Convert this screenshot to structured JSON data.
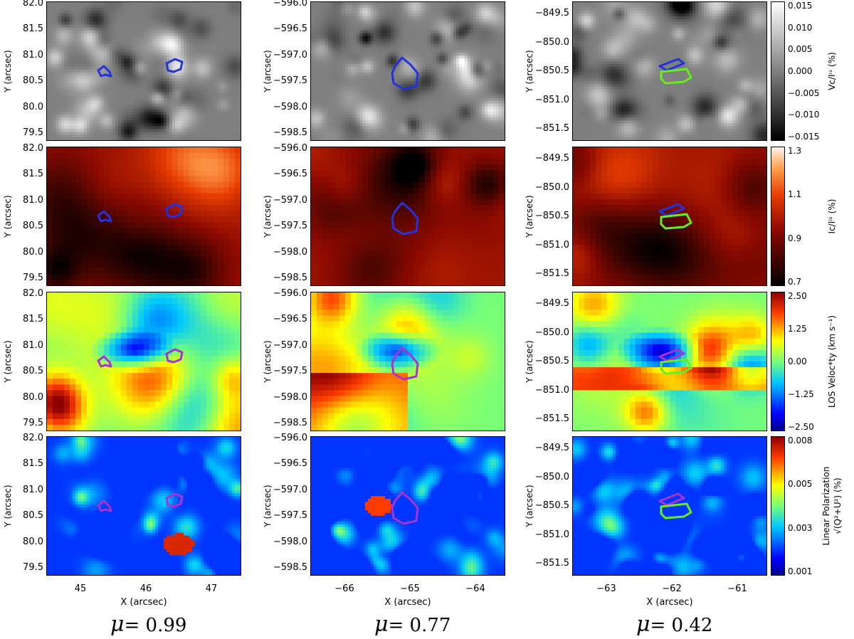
{
  "chart_data": {
    "type": "heatmap",
    "columns": [
      {
        "mu_label": "= 0.99",
        "xlabel": "X (arcsec)",
        "ylabel": "Y (arcsec)",
        "xticks": [
          "45",
          "46",
          "47"
        ],
        "yticks": [
          "82.0",
          "81.5",
          "81.0",
          "80.5",
          "80.0",
          "79.5"
        ]
      },
      {
        "mu_label": "= 0.77",
        "xlabel": "X (arcsec)",
        "ylabel": "Y (arcsec)",
        "xticks": [
          "−66",
          "−65",
          "−64"
        ],
        "yticks": [
          "−596.0",
          "−596.5",
          "−597.0",
          "−597.5",
          "−598.0",
          "−598.5"
        ]
      },
      {
        "mu_label": "= 0.42",
        "xlabel": "X (arcsec)",
        "ylabel": "Y (arcsec)",
        "xticks": [
          "−63",
          "−62",
          "−61"
        ],
        "yticks": [
          "−849.5",
          "−850.0",
          "−850.5",
          "−851.0",
          "−851.5"
        ]
      }
    ],
    "rows": [
      {
        "quantity": "Vc/Iqs",
        "colorbar_label": "Vᴄ/Iⁱˢ (%)",
        "colormap": "gray",
        "ticks": [
          "0.015",
          "0.010",
          "0.005",
          "0.000",
          "−0.005",
          "−0.010",
          "−0.015"
        ],
        "range": [
          -0.015,
          0.015
        ]
      },
      {
        "quantity": "Ic/Iqs",
        "colorbar_label": "Iᴄ/Iⁱˢ (%)",
        "colormap": "heat",
        "ticks": [
          "1.3",
          "1.1",
          "0.9",
          "0.7"
        ],
        "range": [
          0.7,
          1.3
        ]
      },
      {
        "quantity": "LOS Velocity",
        "colorbar_label": "LOS Veloc*ty (km s⁻¹)",
        "colormap": "jet",
        "ticks": [
          "2.50",
          "1.25",
          "0.00",
          "−1.25",
          "−2.50"
        ],
        "range": [
          -2.5,
          2.5
        ]
      },
      {
        "quantity": "Linear Polarization",
        "colorbar_label": "Linear Polarization",
        "colorbar_label2": "√(Q²+U²) (%)",
        "colormap": "jet",
        "ticks": [
          "0.008",
          "0.005",
          "0.003",
          "0.001"
        ],
        "range": [
          0.001,
          0.008
        ]
      }
    ],
    "contour_colors": {
      "blue": "#2233dd",
      "violet": "#aa33cc",
      "green": "#66ee22"
    },
    "mu_symbol": "μ"
  }
}
